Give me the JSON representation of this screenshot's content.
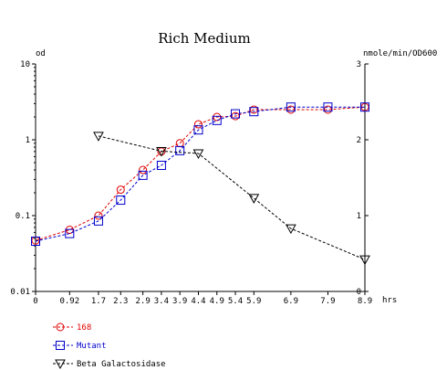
{
  "chart_data": {
    "type": "line",
    "title": "Rich Medium",
    "left_axis_unit": "od",
    "right_axis_unit": "nmole/min/OD600",
    "x_unit": "hrs",
    "x_tick_labels": [
      "0",
      "0.92",
      "1.7",
      "2.3",
      "2.9",
      "3.4",
      "3.9",
      "4.4",
      "4.9",
      "5.4",
      "5.9",
      "6.9",
      "7.9",
      "8.9"
    ],
    "x_range": [
      0,
      8.9
    ],
    "left_axis": {
      "scale": "log",
      "range": [
        0.01,
        10
      ],
      "tick_labels": [
        "0.01",
        "0.1",
        "1",
        "10"
      ]
    },
    "right_axis": {
      "scale": "linear",
      "range": [
        0,
        3
      ],
      "tick_labels": [
        "0",
        "1",
        "2",
        "3"
      ]
    },
    "grid": false,
    "legend_position": "bottom-left",
    "series": [
      {
        "name": "168",
        "axis": "left",
        "color": "#e00000",
        "marker": "circle",
        "linestyle": "dashed",
        "x": [
          0,
          0.92,
          1.7,
          2.3,
          2.9,
          3.4,
          3.9,
          4.4,
          4.9,
          5.4,
          5.9,
          6.9,
          7.9,
          8.9
        ],
        "y": [
          0.047,
          0.065,
          0.1,
          0.22,
          0.4,
          0.7,
          0.9,
          1.6,
          2.0,
          2.05,
          2.5,
          2.5,
          2.5,
          2.7
        ]
      },
      {
        "name": "Mutant",
        "axis": "left",
        "color": "#0000cc",
        "marker": "square",
        "linestyle": "dashed",
        "x": [
          0,
          0.92,
          1.7,
          2.3,
          2.9,
          3.4,
          3.9,
          4.4,
          4.9,
          5.4,
          5.9,
          6.9,
          7.9,
          8.9
        ],
        "y": [
          0.046,
          0.058,
          0.085,
          0.16,
          0.34,
          0.46,
          0.72,
          1.35,
          1.8,
          2.2,
          2.35,
          2.7,
          2.7,
          2.7
        ]
      },
      {
        "name": "Beta Galactosidase",
        "axis": "right",
        "color": "#000000",
        "marker": "triangle-down",
        "linestyle": "dashed",
        "x": [
          1.7,
          3.4,
          4.4,
          5.9,
          6.9,
          8.9
        ],
        "y": [
          2.05,
          1.85,
          1.82,
          1.23,
          0.83,
          0.42
        ]
      }
    ]
  }
}
